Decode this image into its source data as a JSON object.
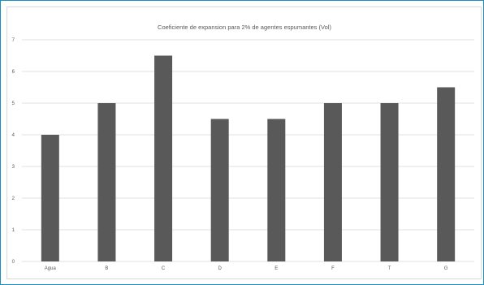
{
  "chart_data": {
    "type": "bar",
    "title": "Coeficiente de expansion para 2% de agentes espumantes (Vol)",
    "xlabel": "",
    "ylabel": "",
    "categories": [
      "Agua",
      "B",
      "C",
      "D",
      "E",
      "F",
      "T",
      "G"
    ],
    "values": [
      4,
      5,
      6.5,
      4.5,
      4.5,
      5,
      5,
      5.5
    ],
    "ylim": [
      0,
      7
    ],
    "yticks": [
      "0",
      "1",
      "2",
      "3",
      "4",
      "5",
      "6",
      "7"
    ],
    "grid": true,
    "legend": "none",
    "bar_color": "#595959",
    "grid_color": "#d9d9d9"
  }
}
